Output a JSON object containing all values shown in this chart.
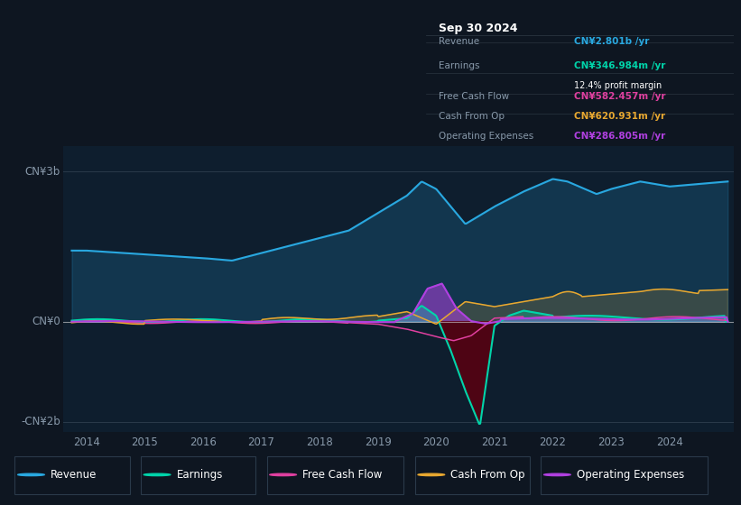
{
  "bg_color": "#0e1621",
  "plot_bg_color": "#0e1e2e",
  "ylim": [
    -2200000000.0,
    3500000000.0
  ],
  "xlim_start": 2013.6,
  "xlim_end": 2025.1,
  "xticks": [
    2014,
    2015,
    2016,
    2017,
    2018,
    2019,
    2020,
    2021,
    2022,
    2023,
    2024
  ],
  "ytick_labels": [
    "CN¥3b",
    "CN¥0",
    "-CN¥2b"
  ],
  "ytick_values": [
    3000000000.0,
    0,
    -2000000000.0
  ],
  "colors": {
    "revenue": "#29a8e0",
    "earnings": "#00d4aa",
    "free_cash_flow": "#e040a0",
    "cash_from_op": "#e8a830",
    "operating_expenses": "#b040e0"
  },
  "legend_items": [
    {
      "label": "Revenue",
      "color": "#29a8e0"
    },
    {
      "label": "Earnings",
      "color": "#00d4aa"
    },
    {
      "label": "Free Cash Flow",
      "color": "#e040a0"
    },
    {
      "label": "Cash From Op",
      "color": "#e8a830"
    },
    {
      "label": "Operating Expenses",
      "color": "#b040e0"
    }
  ],
  "tooltip": {
    "date": "Sep 30 2024",
    "rows": [
      {
        "label": "Revenue",
        "value": "CN¥2.801b /yr",
        "color": "#29a8e0"
      },
      {
        "label": "Earnings",
        "value": "CN¥346.984m /yr",
        "color": "#00d4aa",
        "extra": "12.4% profit margin"
      },
      {
        "label": "Free Cash Flow",
        "value": "CN¥582.457m /yr",
        "color": "#e040a0"
      },
      {
        "label": "Cash From Op",
        "value": "CN¥620.931m /yr",
        "color": "#e8a830"
      },
      {
        "label": "Operating Expenses",
        "value": "CN¥286.805m /yr",
        "color": "#b040e0"
      }
    ]
  }
}
